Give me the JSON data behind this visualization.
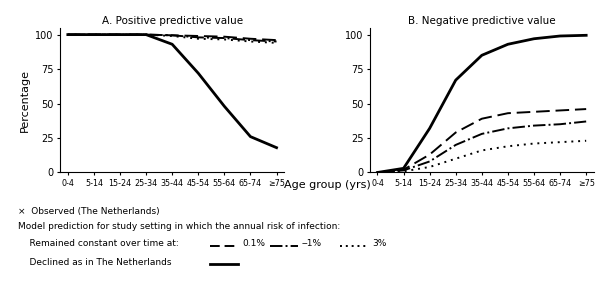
{
  "age_labels": [
    "0-4",
    "5-14",
    "15-24",
    "25-34",
    "35-44",
    "45-54",
    "55-64",
    "65-74",
    "≥75"
  ],
  "age_x": [
    0,
    1,
    2,
    3,
    4,
    5,
    6,
    7,
    8
  ],
  "ppv_netherlands": [
    100,
    100,
    100,
    100,
    93,
    72,
    48,
    26,
    18
  ],
  "ppv_0p1": [
    100,
    100,
    100,
    100,
    99.5,
    99,
    98.5,
    97,
    96
  ],
  "ppv_1": [
    100,
    100,
    100,
    100,
    99.5,
    98,
    97.5,
    96,
    95
  ],
  "ppv_3": [
    100,
    100,
    100,
    100,
    99,
    97,
    96.5,
    95,
    94
  ],
  "npv_netherlands": [
    0,
    3,
    32,
    67,
    85,
    93,
    97,
    99,
    99.5
  ],
  "npv_0p1": [
    0,
    2,
    13,
    29,
    39,
    43,
    44,
    45,
    46
  ],
  "npv_1": [
    0,
    1.5,
    8,
    20,
    28,
    32,
    34,
    35,
    37
  ],
  "npv_3": [
    0,
    0.8,
    4,
    10,
    16,
    19,
    21,
    22,
    23
  ],
  "title_a": "A. Positive predictive value",
  "title_b": "B. Negative predictive value",
  "ylabel": "Percentage",
  "xlabel": "Age group (yrs)",
  "lw_thick": 2.0,
  "lw_thin": 1.4,
  "legend_line1": "×  Observed (The Netherlands)",
  "legend_line2": "Model prediction for study setting in which the annual risk of infection:",
  "legend_line3a": "    Remained constant over time at:",
  "legend_line3b": "0.1%",
  "legend_line3c": "–1%",
  "legend_line3d": "3%",
  "legend_line4": "    Declined as in The Netherlands"
}
